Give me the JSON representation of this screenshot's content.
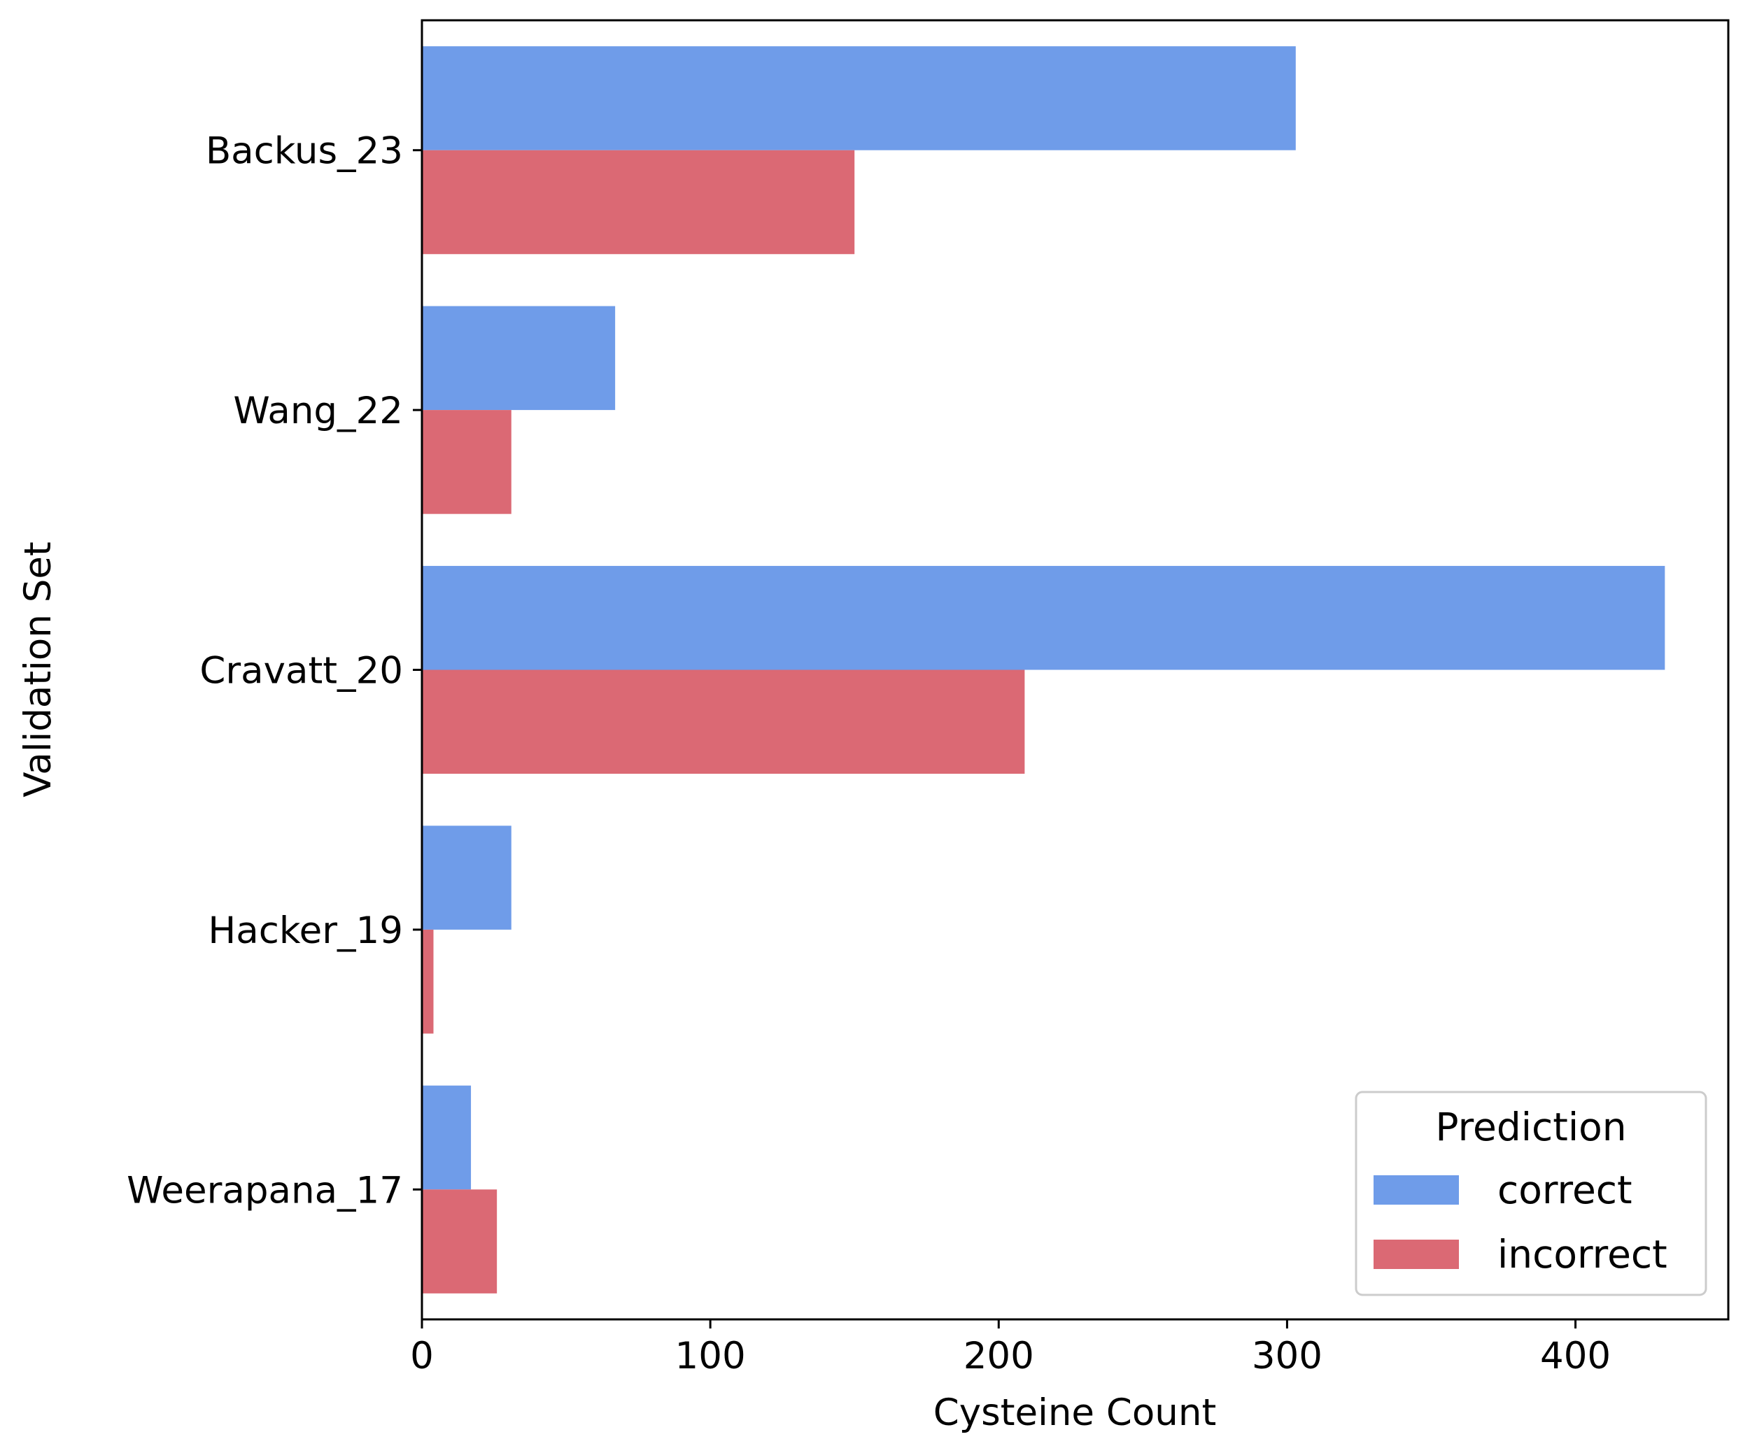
{
  "chart_data": {
    "type": "bar",
    "orientation": "horizontal",
    "categories": [
      "Backus_23",
      "Wang_22",
      "Cravatt_20",
      "Hacker_19",
      "Weerapana_17"
    ],
    "series": [
      {
        "name": "correct",
        "color": "#6f9ce9",
        "values": [
          303,
          67,
          431,
          31,
          17
        ]
      },
      {
        "name": "incorrect",
        "color": "#db6974",
        "values": [
          150,
          31,
          209,
          4,
          26
        ]
      }
    ],
    "xlabel": "Cysteine Count",
    "ylabel": "Validation Set",
    "xlim": [
      0,
      453
    ],
    "xticks": [
      0,
      100,
      200,
      300,
      400
    ],
    "xtick_labels": [
      "0",
      "100",
      "200",
      "300",
      "400"
    ],
    "grid": false,
    "legend": {
      "title": "Prediction",
      "placement": "lower-right"
    }
  }
}
